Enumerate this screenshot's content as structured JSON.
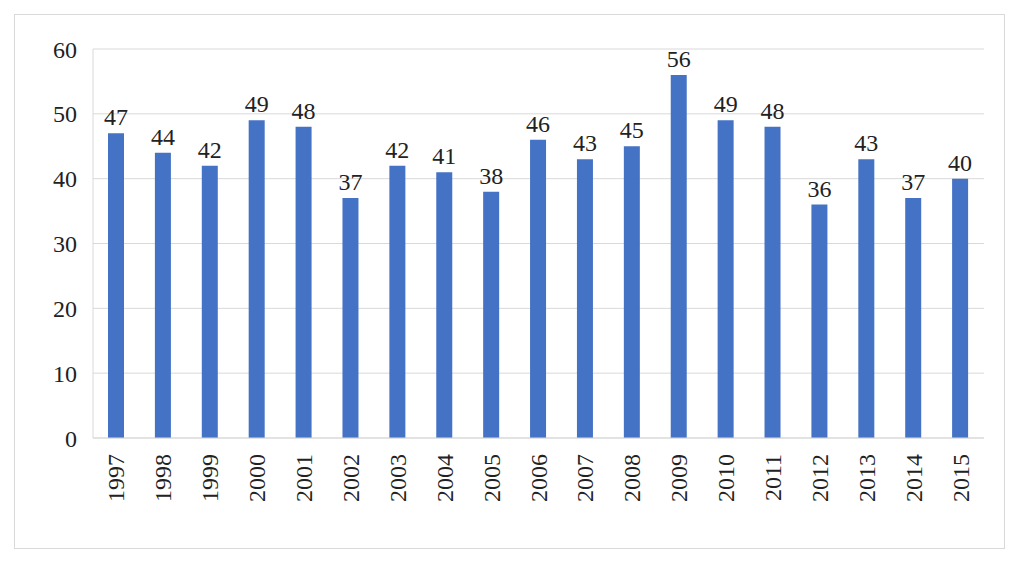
{
  "chart_data": {
    "type": "bar",
    "categories": [
      "1997",
      "1998",
      "1999",
      "2000",
      "2001",
      "2002",
      "2003",
      "2004",
      "2005",
      "2006",
      "2007",
      "2008",
      "2009",
      "2010",
      "2011",
      "2012",
      "2013",
      "2014",
      "2015"
    ],
    "values": [
      47,
      44,
      42,
      49,
      48,
      37,
      42,
      41,
      38,
      46,
      43,
      45,
      56,
      49,
      48,
      36,
      43,
      37,
      40
    ],
    "color": "#4472c4",
    "ylim": [
      0,
      60
    ],
    "yticks": [
      0,
      10,
      20,
      30,
      40,
      50,
      60
    ],
    "grid": true,
    "data_labels": true
  }
}
